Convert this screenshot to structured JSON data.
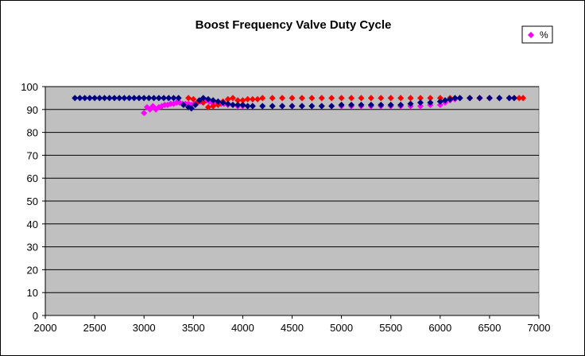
{
  "chart_data": {
    "type": "scatter",
    "title": "Boost Frequency Valve Duty Cycle",
    "xlabel": "",
    "ylabel": "",
    "xlim": [
      2000,
      7000
    ],
    "ylim": [
      0,
      100
    ],
    "x_ticks": [
      2000,
      2500,
      3000,
      3500,
      4000,
      4500,
      5000,
      5500,
      6000,
      6500,
      7000
    ],
    "y_ticks": [
      0,
      10,
      20,
      30,
      40,
      50,
      60,
      70,
      80,
      90,
      100
    ],
    "grid": "horizontal",
    "plot_background": "#c0c0c0",
    "legend": {
      "position": "top-right",
      "entries": [
        {
          "label": "%",
          "color": "#ff00ff"
        }
      ]
    },
    "series": [
      {
        "color": "#ff00ff",
        "x": [
          3000,
          3030,
          3060,
          3090,
          3120,
          3150,
          3180,
          3210,
          3240,
          3270,
          3300,
          3330,
          3360,
          3390,
          3420,
          3450,
          3480,
          3510,
          3540,
          3570,
          3600,
          3630,
          3660,
          3690,
          3720,
          3750,
          3780,
          3810,
          3850,
          3900,
          3950,
          4000,
          4100,
          4200,
          4300,
          4400,
          4500,
          4600,
          4700,
          4800,
          4900,
          5000,
          5100,
          5200,
          5300,
          5400,
          5500,
          5600,
          5700,
          5800,
          5900,
          6000,
          6050,
          6100,
          6150,
          6200,
          6300,
          6400,
          6500,
          6600,
          6700
        ],
        "y": [
          88.5,
          91,
          90,
          91.5,
          90,
          91,
          91.5,
          92,
          92,
          92.5,
          92.5,
          93,
          93,
          92.5,
          92.5,
          92.5,
          92,
          92.5,
          93,
          93.5,
          94,
          94,
          93.5,
          93,
          92.5,
          92.5,
          92.5,
          92.5,
          92,
          92,
          91.5,
          91.5,
          91.5,
          91.5,
          91.5,
          91.5,
          91.5,
          91.5,
          91.5,
          91.5,
          91.5,
          91.5,
          91.5,
          91.5,
          91.5,
          91.5,
          91.5,
          91.5,
          91.5,
          91.5,
          92,
          92,
          93,
          94,
          94.5,
          95,
          95,
          95,
          95,
          95,
          95
        ]
      },
      {
        "color": "#ff0000",
        "x": [
          3450,
          3500,
          3550,
          3600,
          3650,
          3700,
          3750,
          3800,
          3850,
          3900,
          3950,
          4000,
          4050,
          4100,
          4150,
          4200,
          4300,
          4400,
          4500,
          4600,
          4700,
          4800,
          4900,
          5000,
          5100,
          5200,
          5300,
          5400,
          5500,
          5600,
          5700,
          5800,
          5900,
          6000,
          6100,
          6200,
          6300,
          6400,
          6500,
          6600,
          6700,
          6750,
          6800,
          6840
        ],
        "y": [
          95,
          94.5,
          93.5,
          93,
          91,
          91.5,
          92,
          93.5,
          94.5,
          95,
          94,
          94,
          94.5,
          94.5,
          94.5,
          95,
          95,
          95,
          95,
          95,
          95,
          95,
          95,
          95,
          95,
          95,
          95,
          95,
          95,
          95,
          95,
          95,
          95,
          95,
          95,
          95,
          95,
          95,
          95,
          95,
          95,
          95,
          95,
          95
        ]
      },
      {
        "color": "#000080",
        "x": [
          2300,
          2350,
          2400,
          2450,
          2500,
          2550,
          2600,
          2650,
          2700,
          2750,
          2800,
          2850,
          2900,
          2950,
          3000,
          3050,
          3100,
          3150,
          3200,
          3250,
          3300,
          3350,
          3400,
          3450,
          3480,
          3520,
          3560,
          3600,
          3650,
          3700,
          3750,
          3800,
          3850,
          3900,
          3950,
          4000,
          4050,
          4100,
          4200,
          4300,
          4400,
          4500,
          4600,
          4700,
          4800,
          4900,
          5000,
          5100,
          5200,
          5300,
          5400,
          5500,
          5600,
          5700,
          5800,
          5900,
          6000,
          6050,
          6100,
          6150,
          6200,
          6300,
          6400,
          6500,
          6600,
          6700,
          6750
        ],
        "y": [
          95,
          95,
          95,
          95,
          95,
          95,
          95,
          95,
          95,
          95,
          95,
          95,
          95,
          95,
          95,
          95,
          95,
          95,
          95,
          95,
          95,
          95,
          92,
          91,
          90.5,
          92,
          94,
          95,
          94.5,
          94,
          93.5,
          93,
          92.5,
          92,
          92,
          92,
          91.5,
          91.5,
          91.5,
          91.5,
          91.5,
          91.5,
          91.5,
          91.5,
          91.5,
          91.5,
          92,
          92,
          92,
          92,
          92,
          92,
          92,
          92.5,
          93,
          93,
          93.5,
          94,
          94.5,
          95,
          95,
          95,
          95,
          95,
          95,
          95,
          95
        ]
      }
    ]
  }
}
